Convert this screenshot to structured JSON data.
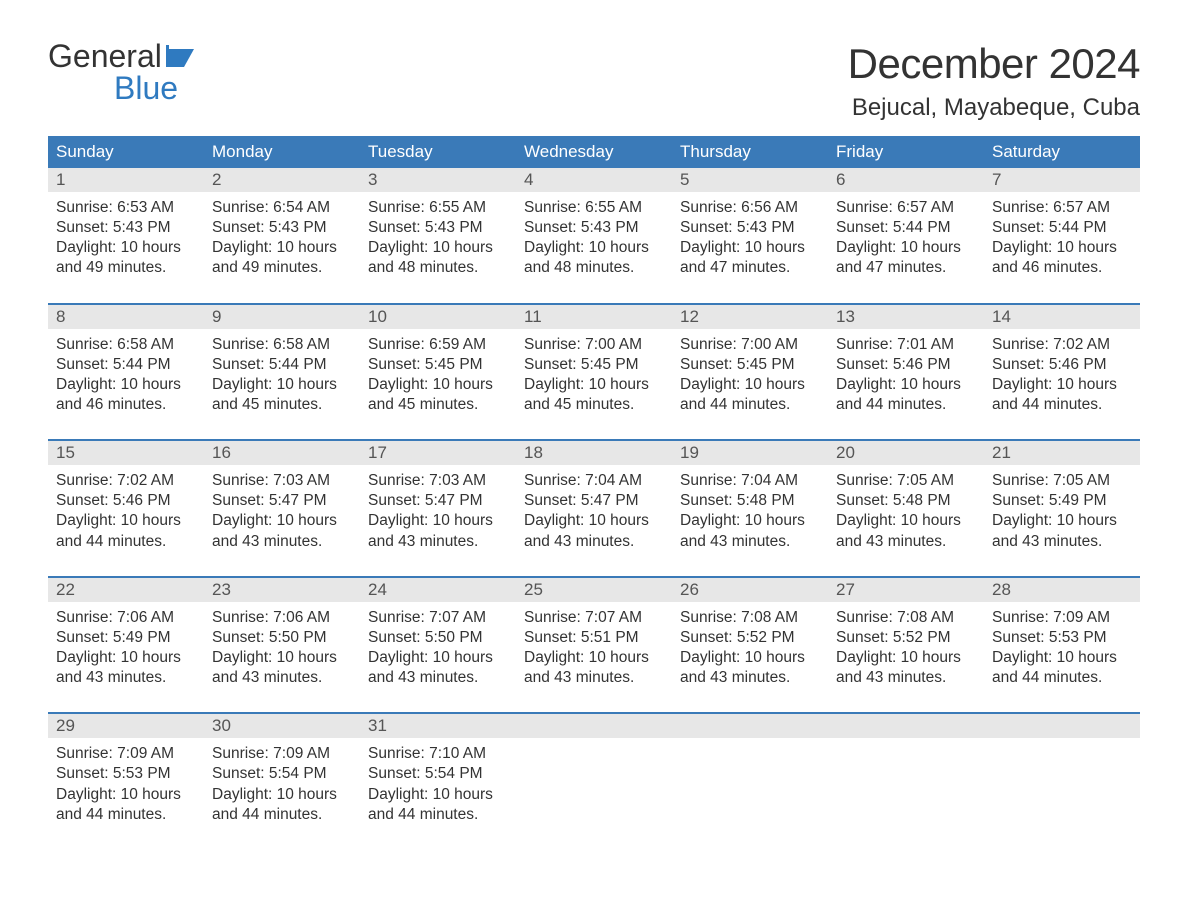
{
  "brand": {
    "word1": "General",
    "word2": "Blue",
    "text_color": "#333333",
    "accent_color": "#2f7ac0",
    "flag_color": "#2f7ac0"
  },
  "title": "December 2024",
  "location": "Bejucal, Mayabeque, Cuba",
  "colors": {
    "header_bg": "#3a7ab8",
    "header_text": "#ffffff",
    "daynum_bg": "#e7e7e7",
    "daynum_text": "#555555",
    "body_text": "#333333",
    "week_divider": "#3a7ab8",
    "page_bg": "#ffffff"
  },
  "typography": {
    "title_fontsize": 42,
    "location_fontsize": 24,
    "weekday_fontsize": 17,
    "daynum_fontsize": 17,
    "body_fontsize": 15.5,
    "logo_fontsize": 32
  },
  "layout": {
    "columns": 7,
    "rows": 5,
    "cell_padding": "6px 8px"
  },
  "weekdays": [
    "Sunday",
    "Monday",
    "Tuesday",
    "Wednesday",
    "Thursday",
    "Friday",
    "Saturday"
  ],
  "weeks": [
    [
      {
        "n": "1",
        "sunrise": "6:53 AM",
        "sunset": "5:43 PM",
        "dl1": "10 hours",
        "dl2": "and 49 minutes."
      },
      {
        "n": "2",
        "sunrise": "6:54 AM",
        "sunset": "5:43 PM",
        "dl1": "10 hours",
        "dl2": "and 49 minutes."
      },
      {
        "n": "3",
        "sunrise": "6:55 AM",
        "sunset": "5:43 PM",
        "dl1": "10 hours",
        "dl2": "and 48 minutes."
      },
      {
        "n": "4",
        "sunrise": "6:55 AM",
        "sunset": "5:43 PM",
        "dl1": "10 hours",
        "dl2": "and 48 minutes."
      },
      {
        "n": "5",
        "sunrise": "6:56 AM",
        "sunset": "5:43 PM",
        "dl1": "10 hours",
        "dl2": "and 47 minutes."
      },
      {
        "n": "6",
        "sunrise": "6:57 AM",
        "sunset": "5:44 PM",
        "dl1": "10 hours",
        "dl2": "and 47 minutes."
      },
      {
        "n": "7",
        "sunrise": "6:57 AM",
        "sunset": "5:44 PM",
        "dl1": "10 hours",
        "dl2": "and 46 minutes."
      }
    ],
    [
      {
        "n": "8",
        "sunrise": "6:58 AM",
        "sunset": "5:44 PM",
        "dl1": "10 hours",
        "dl2": "and 46 minutes."
      },
      {
        "n": "9",
        "sunrise": "6:58 AM",
        "sunset": "5:44 PM",
        "dl1": "10 hours",
        "dl2": "and 45 minutes."
      },
      {
        "n": "10",
        "sunrise": "6:59 AM",
        "sunset": "5:45 PM",
        "dl1": "10 hours",
        "dl2": "and 45 minutes."
      },
      {
        "n": "11",
        "sunrise": "7:00 AM",
        "sunset": "5:45 PM",
        "dl1": "10 hours",
        "dl2": "and 45 minutes."
      },
      {
        "n": "12",
        "sunrise": "7:00 AM",
        "sunset": "5:45 PM",
        "dl1": "10 hours",
        "dl2": "and 44 minutes."
      },
      {
        "n": "13",
        "sunrise": "7:01 AM",
        "sunset": "5:46 PM",
        "dl1": "10 hours",
        "dl2": "and 44 minutes."
      },
      {
        "n": "14",
        "sunrise": "7:02 AM",
        "sunset": "5:46 PM",
        "dl1": "10 hours",
        "dl2": "and 44 minutes."
      }
    ],
    [
      {
        "n": "15",
        "sunrise": "7:02 AM",
        "sunset": "5:46 PM",
        "dl1": "10 hours",
        "dl2": "and 44 minutes."
      },
      {
        "n": "16",
        "sunrise": "7:03 AM",
        "sunset": "5:47 PM",
        "dl1": "10 hours",
        "dl2": "and 43 minutes."
      },
      {
        "n": "17",
        "sunrise": "7:03 AM",
        "sunset": "5:47 PM",
        "dl1": "10 hours",
        "dl2": "and 43 minutes."
      },
      {
        "n": "18",
        "sunrise": "7:04 AM",
        "sunset": "5:47 PM",
        "dl1": "10 hours",
        "dl2": "and 43 minutes."
      },
      {
        "n": "19",
        "sunrise": "7:04 AM",
        "sunset": "5:48 PM",
        "dl1": "10 hours",
        "dl2": "and 43 minutes."
      },
      {
        "n": "20",
        "sunrise": "7:05 AM",
        "sunset": "5:48 PM",
        "dl1": "10 hours",
        "dl2": "and 43 minutes."
      },
      {
        "n": "21",
        "sunrise": "7:05 AM",
        "sunset": "5:49 PM",
        "dl1": "10 hours",
        "dl2": "and 43 minutes."
      }
    ],
    [
      {
        "n": "22",
        "sunrise": "7:06 AM",
        "sunset": "5:49 PM",
        "dl1": "10 hours",
        "dl2": "and 43 minutes."
      },
      {
        "n": "23",
        "sunrise": "7:06 AM",
        "sunset": "5:50 PM",
        "dl1": "10 hours",
        "dl2": "and 43 minutes."
      },
      {
        "n": "24",
        "sunrise": "7:07 AM",
        "sunset": "5:50 PM",
        "dl1": "10 hours",
        "dl2": "and 43 minutes."
      },
      {
        "n": "25",
        "sunrise": "7:07 AM",
        "sunset": "5:51 PM",
        "dl1": "10 hours",
        "dl2": "and 43 minutes."
      },
      {
        "n": "26",
        "sunrise": "7:08 AM",
        "sunset": "5:52 PM",
        "dl1": "10 hours",
        "dl2": "and 43 minutes."
      },
      {
        "n": "27",
        "sunrise": "7:08 AM",
        "sunset": "5:52 PM",
        "dl1": "10 hours",
        "dl2": "and 43 minutes."
      },
      {
        "n": "28",
        "sunrise": "7:09 AM",
        "sunset": "5:53 PM",
        "dl1": "10 hours",
        "dl2": "and 44 minutes."
      }
    ],
    [
      {
        "n": "29",
        "sunrise": "7:09 AM",
        "sunset": "5:53 PM",
        "dl1": "10 hours",
        "dl2": "and 44 minutes."
      },
      {
        "n": "30",
        "sunrise": "7:09 AM",
        "sunset": "5:54 PM",
        "dl1": "10 hours",
        "dl2": "and 44 minutes."
      },
      {
        "n": "31",
        "sunrise": "7:10 AM",
        "sunset": "5:54 PM",
        "dl1": "10 hours",
        "dl2": "and 44 minutes."
      },
      null,
      null,
      null,
      null
    ]
  ],
  "labels": {
    "sunrise_prefix": "Sunrise: ",
    "sunset_prefix": "Sunset: ",
    "daylight_prefix": "Daylight: "
  }
}
